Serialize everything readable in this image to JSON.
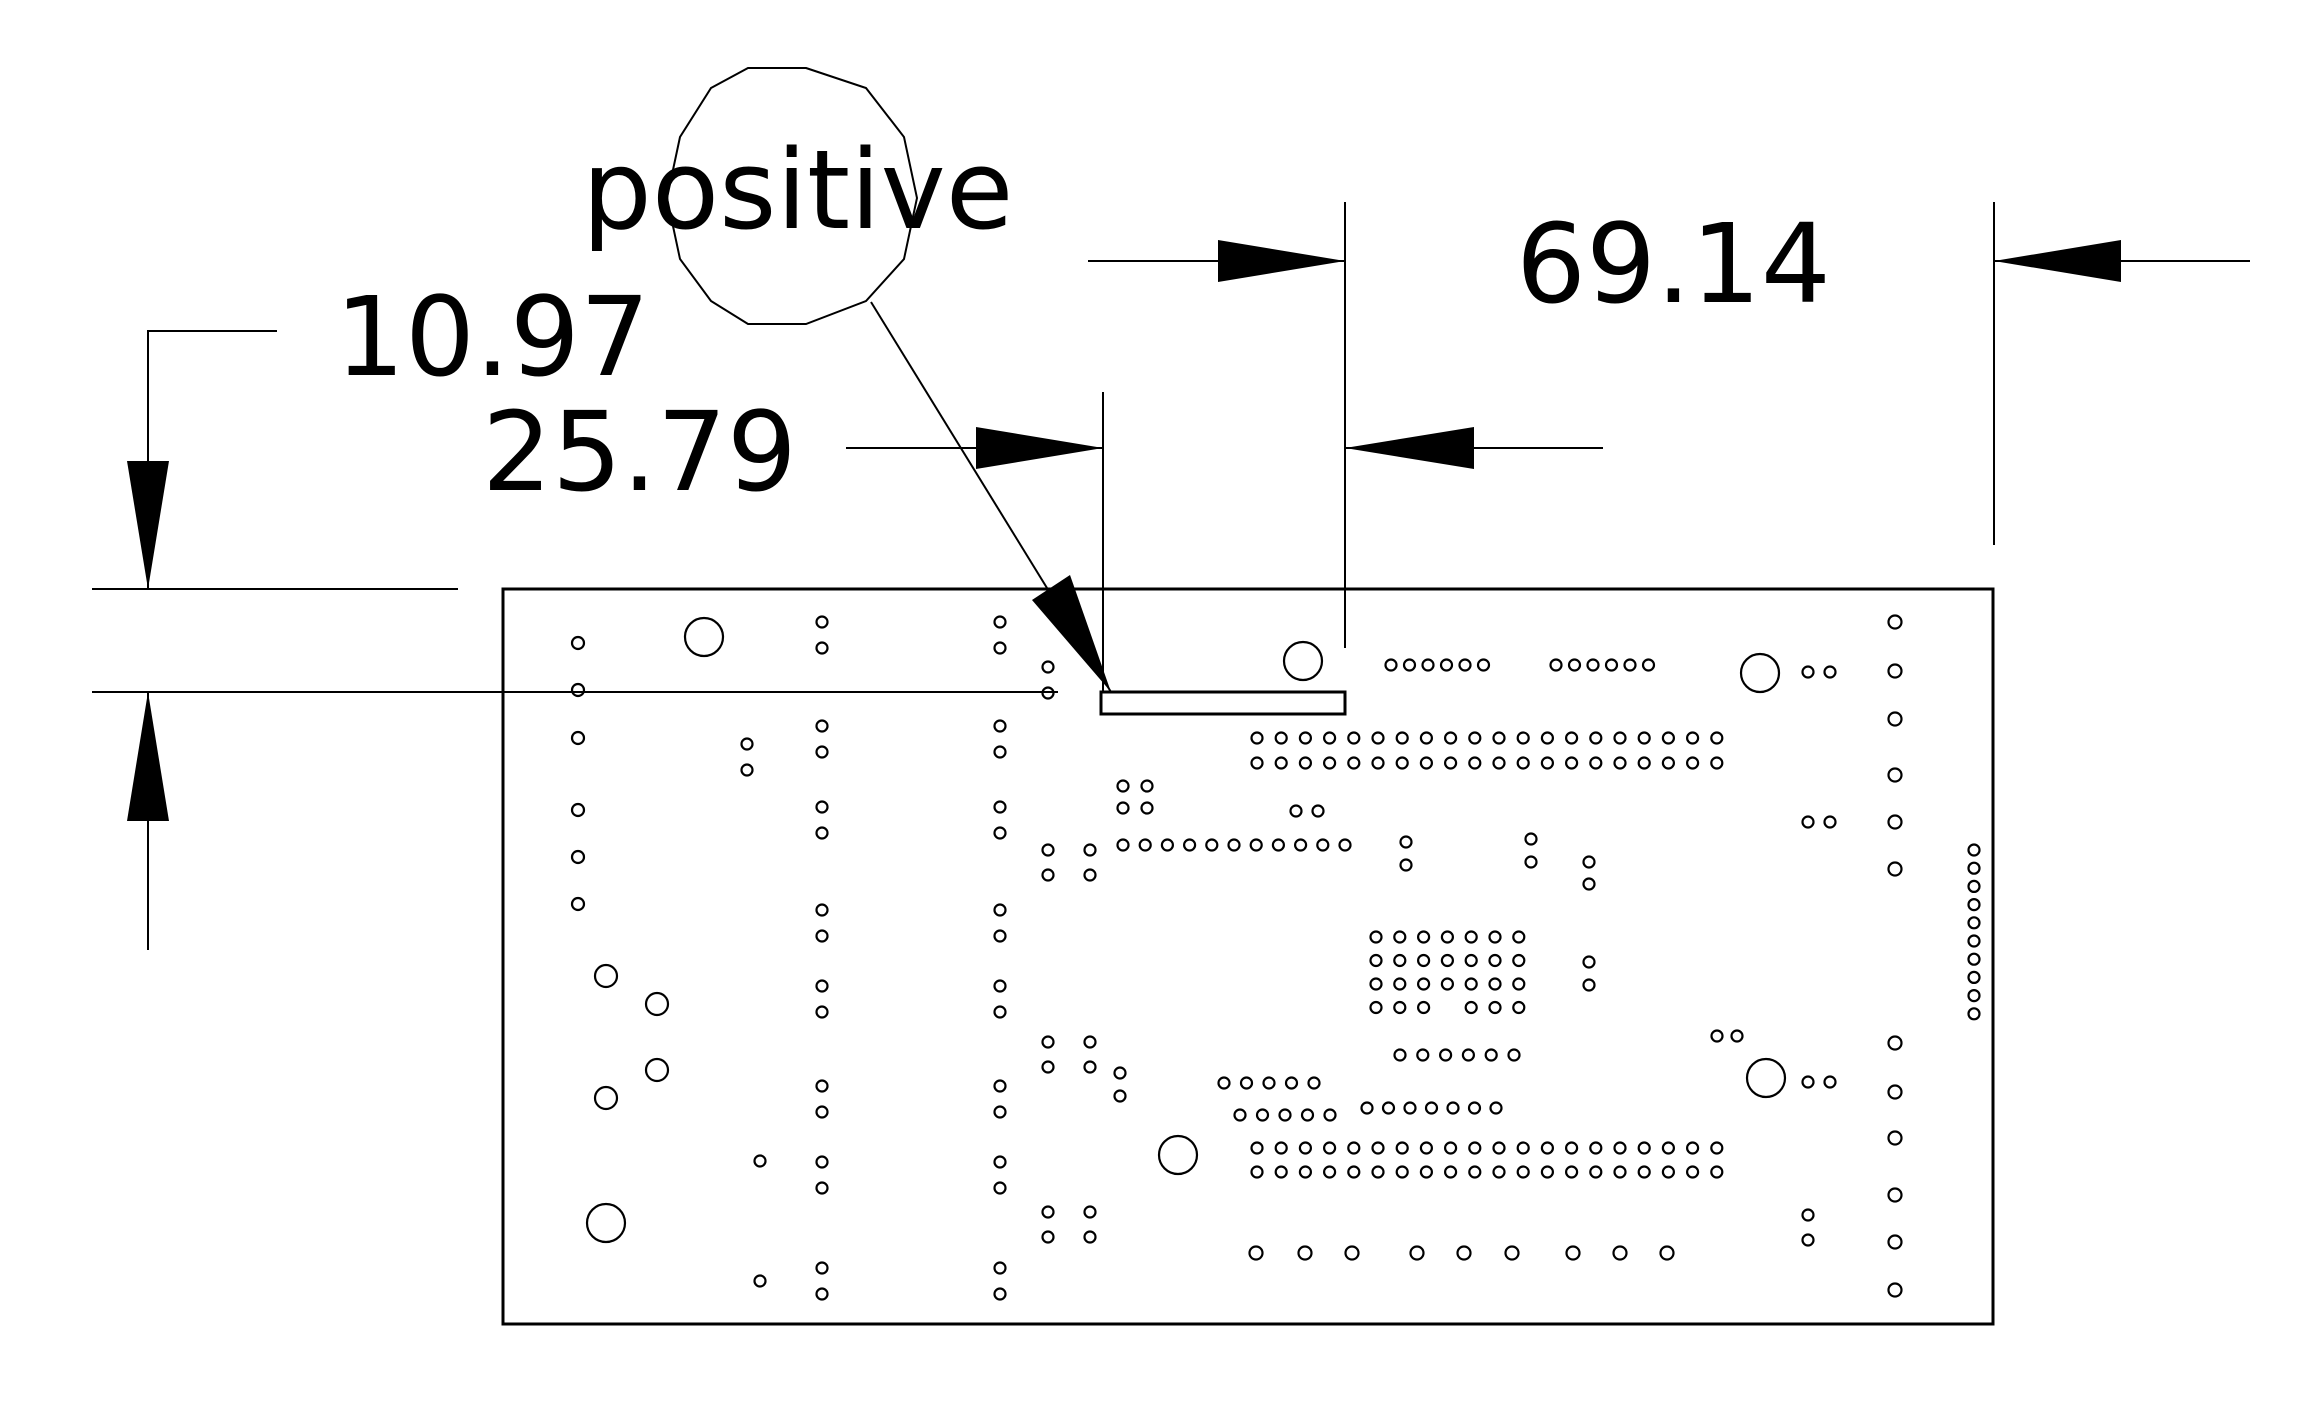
{
  "dimensions": {
    "vertical_offset": "10.97",
    "horizontal_offset": "25.79",
    "component_width": "69.14"
  },
  "callout": {
    "label": "positive"
  },
  "colors": {
    "line": "#000000",
    "background": "#ffffff"
  }
}
